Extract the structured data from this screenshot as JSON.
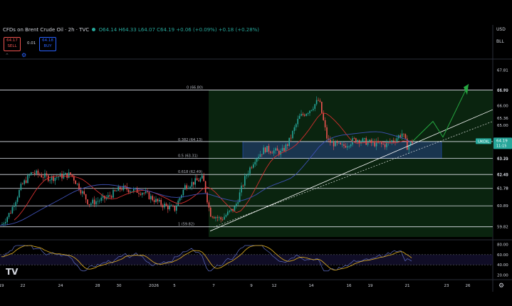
{
  "header": {
    "symbol": "CFDs on Brent Crude Oil · 2h · TVC",
    "open": "O64.14",
    "high": "H64.33",
    "low": "L64.07",
    "close": "C64.19",
    "change": "+0.06 (+0.09%)",
    "extra": "+0.18 (+0.28%)"
  },
  "trade": {
    "sell_price": "64.17",
    "sell_label": "SELL",
    "spread": "0.01",
    "buy_price": "64.18",
    "buy_label": "BUY"
  },
  "axis": {
    "currency": "USD",
    "currency_sub": "BLL"
  },
  "chart_data": {
    "type": "candlestick",
    "symbol": "UKOIL",
    "last_price": 64.19,
    "last_countdown": "11:15",
    "price_ticks": [
      "67.81",
      "66.80",
      "66.79",
      "66.00",
      "65.36",
      "65.00",
      "64.17",
      "63.31",
      "63.29",
      "62.49",
      "62.48",
      "61.78",
      "61.78",
      "60.89",
      "59.82"
    ],
    "price_range": [
      59.3,
      68.2
    ],
    "x_labels": [
      "19",
      "22",
      "24",
      "28",
      "30",
      "2026",
      "5",
      "7",
      "9",
      "12",
      "14",
      "16",
      "19",
      "21",
      "23",
      "26"
    ],
    "fib_levels": [
      {
        "label": "0 (66.80)",
        "value": 66.8
      },
      {
        "label": "0.382 (64.13)",
        "value": 64.13
      },
      {
        "label": "0.5 (63.31)",
        "value": 63.31
      },
      {
        "label": "0.618 (62.49)",
        "value": 62.49
      },
      {
        "label": "1 (59.82)",
        "value": 59.82
      }
    ],
    "horizontal_lines": [
      66.8,
      64.17,
      63.31,
      62.49,
      61.78,
      60.89,
      59.82
    ],
    "rsi": {
      "ticks": [
        "80.00",
        "60.00",
        "40.00",
        "20.00"
      ],
      "range": [
        15,
        85
      ],
      "upper": 60,
      "lower": 40
    },
    "colors": {
      "up": "#26a69a",
      "down": "#ef5350",
      "ma_red": "#d32f2f",
      "ma_blue": "#3f51b5",
      "trend": "#ffffff",
      "projection": "#26a641",
      "zone": "#1e3a5f",
      "price_badge": "#26a69a"
    }
  }
}
